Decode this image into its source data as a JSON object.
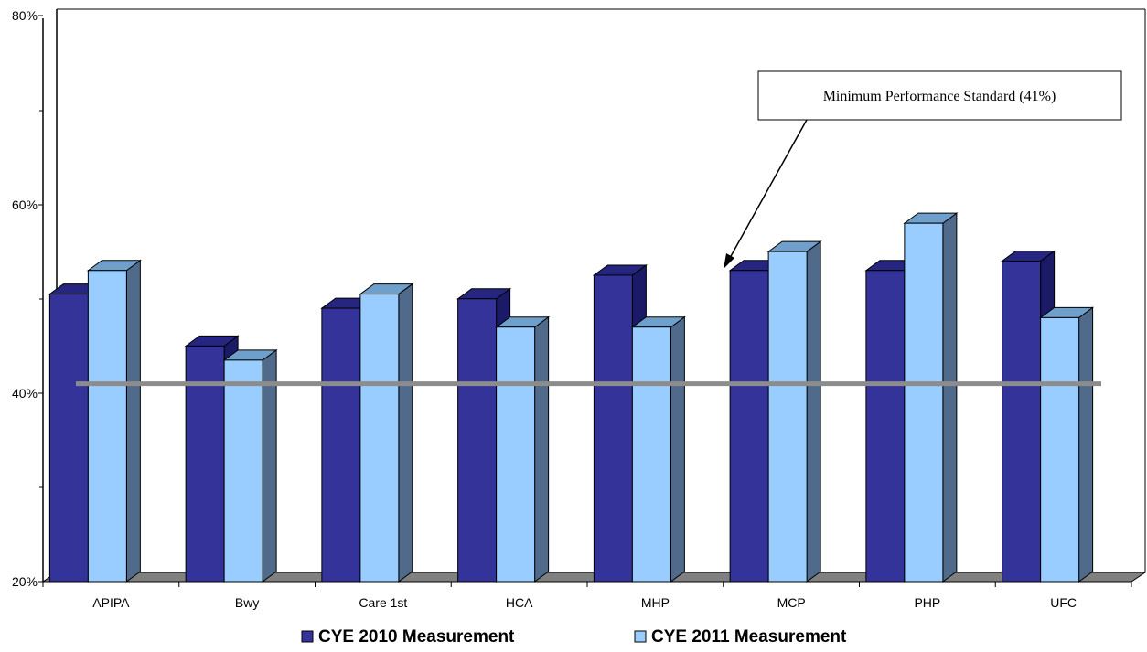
{
  "chart_data": {
    "type": "bar",
    "categories": [
      "APIPA",
      "Bwy",
      "Care 1st",
      "HCA",
      "MHP",
      "MCP",
      "PHP",
      "UFC"
    ],
    "series": [
      {
        "name": "CYE 2010 Measurement",
        "color": "#333399",
        "values": [
          50.5,
          45.0,
          49.0,
          50.0,
          52.5,
          53.0,
          53.0,
          54.0
        ]
      },
      {
        "name": "CYE 2011 Measurement",
        "color": "#99ccff",
        "values": [
          53.0,
          43.5,
          50.5,
          47.0,
          47.0,
          55.0,
          58.0,
          48.0
        ]
      }
    ],
    "y_ticks": [
      "20%",
      "40%",
      "60%",
      "80%"
    ],
    "ylim": [
      20,
      80
    ],
    "y_scale": "piecewise-linear (20% to 40% and 40% to 80% segments)",
    "reference_line": {
      "value": 41,
      "label": "Minimum Performance Standard (41%)",
      "color": "#8c8c8c"
    },
    "legend_position": "bottom",
    "grid": false,
    "title": "",
    "xlabel": "",
    "ylabel": ""
  }
}
